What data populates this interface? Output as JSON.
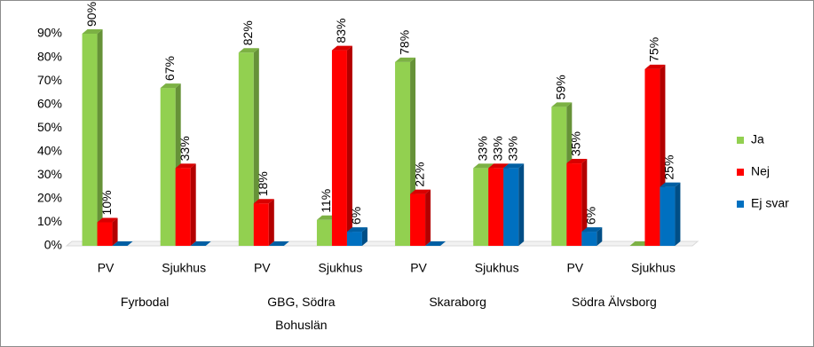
{
  "chart_data": {
    "type": "bar3d",
    "categories": [
      "PV",
      "Sjukhus",
      "PV",
      "Sjukhus",
      "PV",
      "Sjukhus",
      "PV",
      "Sjukhus"
    ],
    "groups": [
      "Fyrbodal",
      "GBG, Södra Bohuslän",
      "Skaraborg",
      "Södra Älvsborg"
    ],
    "series": [
      {
        "name": "Ja",
        "color": "#92d050",
        "values": [
          90,
          67,
          82,
          11,
          78,
          33,
          59,
          0
        ],
        "value_labels": [
          "90%",
          "67%",
          "82%",
          "11%",
          "78%",
          "33%",
          "59%",
          null
        ]
      },
      {
        "name": "Nej",
        "color": "#ff0000",
        "values": [
          10,
          33,
          18,
          83,
          22,
          33,
          35,
          75
        ],
        "value_labels": [
          "10%",
          "33%",
          "18%",
          "83%",
          "22%",
          "33%",
          "35%",
          "75%"
        ]
      },
      {
        "name": "Ej svar",
        "color": "#0070c0",
        "values": [
          0,
          0,
          0,
          6,
          0,
          33,
          6,
          25
        ],
        "value_labels": [
          null,
          null,
          null,
          "6%",
          null,
          "33%",
          "6%",
          "25%"
        ]
      }
    ],
    "ylim": [
      0,
      90
    ],
    "yticks": [
      {
        "value": 0,
        "label": "0%"
      },
      {
        "value": 10,
        "label": "10%"
      },
      {
        "value": 20,
        "label": "20%"
      },
      {
        "value": 30,
        "label": "30%"
      },
      {
        "value": 40,
        "label": "40%"
      },
      {
        "value": 50,
        "label": "50%"
      },
      {
        "value": 60,
        "label": "60%"
      },
      {
        "value": 70,
        "label": "70%"
      },
      {
        "value": 80,
        "label": "80%"
      },
      {
        "value": 90,
        "label": "90%"
      }
    ],
    "grid": false,
    "legend": "right"
  }
}
